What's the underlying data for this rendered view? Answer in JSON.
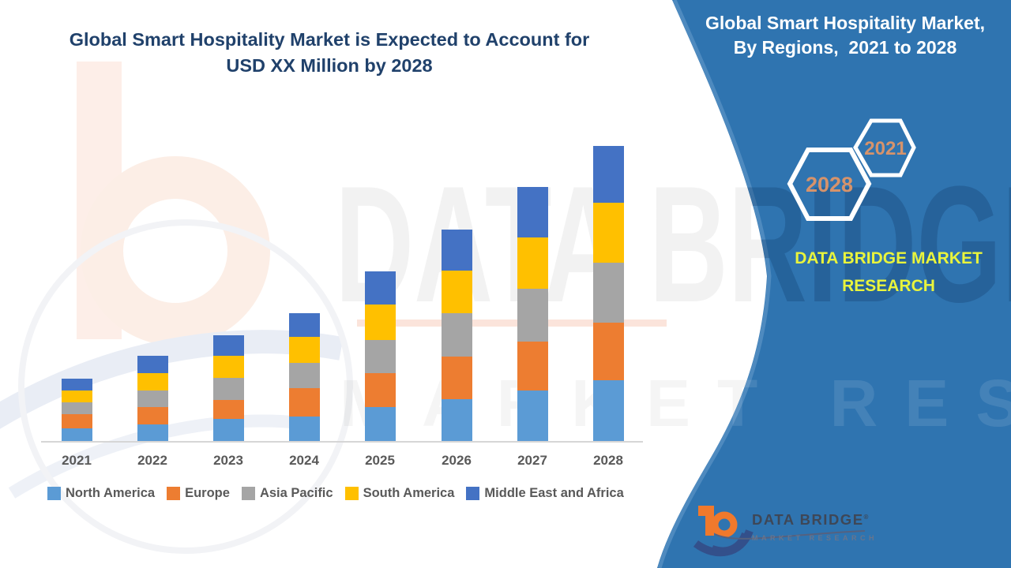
{
  "title": {
    "line1": "Global Smart Hospitality Market is Expected to Account for",
    "line2": "USD XX Million by 2028"
  },
  "panel": {
    "bg_color": "#2f74b0",
    "heading_line1": "Global Smart Hospitality Market,",
    "heading_line2": "By Regions,  2021 to 2028",
    "hexagons": [
      {
        "label": "2028"
      },
      {
        "label": "2021"
      }
    ],
    "hex_text_color": "#d6936b",
    "brand_line1": "DATA BRIDGE MARKET",
    "brand_line2": "RESEARCH",
    "brand_text_color": "#e9f43c"
  },
  "watermark": {
    "row1": "DATA BRIDGE",
    "row2": "MARKET RESEARCH"
  },
  "logo": {
    "name": "DATA BRIDGE",
    "reg_mark": "®",
    "subname": "MARKET RESEARCH"
  },
  "chart_data": {
    "type": "bar",
    "stacked": true,
    "title": "Global Smart Hospitality Market is Expected to Account for USD XX Million by 2028",
    "xlabel": "",
    "ylabel": "",
    "units": "USD XX Million (y-axis values not labeled; relative units estimated from bar pixel heights)",
    "grid": false,
    "y_axis_hidden": true,
    "ylim": [
      0,
      400
    ],
    "legend_position": "bottom",
    "categories": [
      "2021",
      "2022",
      "2023",
      "2024",
      "2025",
      "2026",
      "2027",
      "2028"
    ],
    "series": [
      {
        "name": "North America",
        "color": "#5b9bd5",
        "values": [
          16,
          21,
          28,
          31,
          43,
          53,
          64,
          77
        ]
      },
      {
        "name": "Europe",
        "color": "#ed7d31",
        "values": [
          18,
          22,
          24,
          36,
          43,
          54,
          62,
          73
        ]
      },
      {
        "name": "Asia Pacific",
        "color": "#a5a5a5",
        "values": [
          15,
          21,
          28,
          32,
          42,
          55,
          67,
          76
        ]
      },
      {
        "name": "South America",
        "color": "#ffc000",
        "values": [
          15,
          22,
          28,
          33,
          45,
          54,
          65,
          76
        ]
      },
      {
        "name": "Middle East and Africa",
        "color": "#4472c4",
        "values": [
          15,
          22,
          26,
          30,
          42,
          52,
          64,
          72
        ]
      }
    ],
    "totals": [
      79,
      108,
      134,
      162,
      215,
      268,
      322,
      374
    ]
  }
}
